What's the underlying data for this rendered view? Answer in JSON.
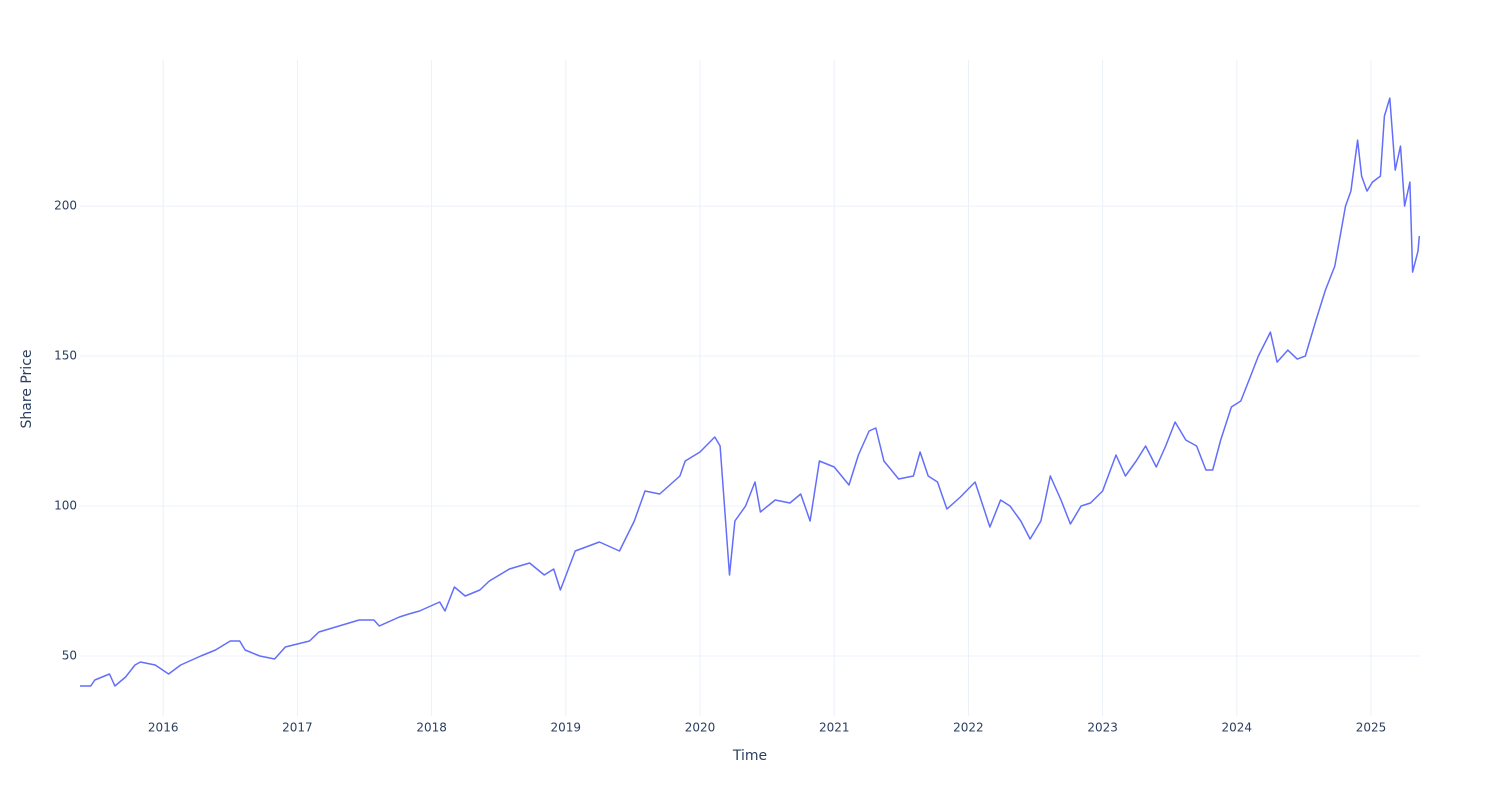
{
  "chart_data": {
    "type": "line",
    "x_label": "Time",
    "y_label": "Share Price",
    "xlim": [
      2015.38,
      2025.365
    ],
    "xticks": [
      2016,
      2017,
      2018,
      2019,
      2020,
      2021,
      2022,
      2023,
      2024,
      2025
    ],
    "ylim": [
      30,
      248.7
    ],
    "yticks": [
      50,
      100,
      150,
      200
    ],
    "grid": true,
    "series": [
      {
        "color": "#636efa",
        "x": [
          2015.38,
          2015.46,
          2015.49,
          2015.6,
          2015.64,
          2015.72,
          2015.79,
          2015.83,
          2015.94,
          2016.04,
          2016.13,
          2016.28,
          2016.39,
          2016.5,
          2016.57,
          2016.61,
          2016.72,
          2016.83,
          2016.91,
          2017.0,
          2017.09,
          2017.16,
          2017.31,
          2017.46,
          2017.57,
          2017.61,
          2017.76,
          2017.83,
          2017.91,
          2018.06,
          2018.1,
          2018.17,
          2018.25,
          2018.36,
          2018.43,
          2018.58,
          2018.73,
          2018.84,
          2018.91,
          2018.96,
          2019.07,
          2019.25,
          2019.4,
          2019.51,
          2019.59,
          2019.7,
          2019.85,
          2019.89,
          2020.0,
          2020.11,
          2020.15,
          2020.22,
          2020.26,
          2020.34,
          2020.41,
          2020.45,
          2020.56,
          2020.67,
          2020.75,
          2020.82,
          2020.89,
          2021.0,
          2021.11,
          2021.18,
          2021.26,
          2021.31,
          2021.37,
          2021.48,
          2021.59,
          2021.64,
          2021.7,
          2021.77,
          2021.84,
          2021.94,
          2022.05,
          2022.16,
          2022.24,
          2022.31,
          2022.39,
          2022.46,
          2022.54,
          2022.61,
          2022.69,
          2022.76,
          2022.84,
          2022.91,
          2023.0,
          2023.1,
          2023.17,
          2023.25,
          2023.32,
          2023.4,
          2023.47,
          2023.54,
          2023.62,
          2023.7,
          2023.77,
          2023.82,
          2023.88,
          2023.96,
          2024.03,
          2024.1,
          2024.16,
          2024.25,
          2024.3,
          2024.38,
          2024.45,
          2024.51,
          2024.59,
          2024.66,
          2024.73,
          2024.81,
          2024.85,
          2024.9,
          2024.93,
          2024.97,
          2025.01,
          2025.07,
          2025.1,
          2025.14,
          2025.18,
          2025.22,
          2025.25,
          2025.29,
          2025.31,
          2025.35,
          2025.36
        ],
        "values": [
          40,
          40,
          42,
          44,
          40,
          43,
          47,
          48,
          47,
          44,
          47,
          50,
          52,
          55,
          55,
          52,
          50,
          49,
          53,
          54,
          55,
          58,
          60,
          62,
          62,
          60,
          63,
          64,
          65,
          68,
          65,
          73,
          70,
          72,
          75,
          79,
          81,
          77,
          79,
          72,
          85,
          88,
          85,
          95,
          105,
          104,
          110,
          115,
          118,
          123,
          120,
          77,
          95,
          100,
          108,
          98,
          102,
          101,
          104,
          95,
          115,
          113,
          107,
          117,
          125,
          126,
          115,
          109,
          110,
          118,
          110,
          108,
          99,
          103,
          108,
          93,
          102,
          100,
          95,
          89,
          95,
          110,
          102,
          94,
          100,
          101,
          105,
          117,
          110,
          115,
          120,
          113,
          120,
          128,
          122,
          120,
          112,
          112,
          122,
          133,
          135,
          143,
          150,
          158,
          148,
          152,
          149,
          150,
          162,
          172,
          180,
          200,
          205,
          222,
          210,
          205,
          208,
          210,
          230,
          236,
          212,
          220,
          200,
          208,
          178,
          185,
          190
        ]
      }
    ]
  }
}
